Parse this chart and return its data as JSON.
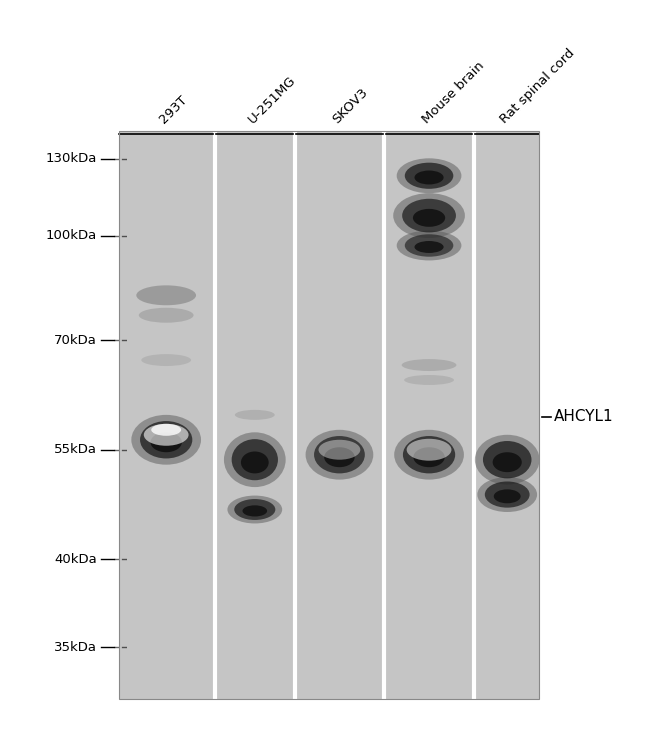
{
  "background_color": "#d8d8d8",
  "panel_color": "#c8c8c8",
  "white_bg": "#ffffff",
  "lane_labels": [
    "293T",
    "U-251MG",
    "SKOV3",
    "Mouse brain",
    "Rat spinal cord"
  ],
  "mw_markers": [
    "130kDa",
    "100kDa",
    "70kDa",
    "55kDa",
    "40kDa",
    "35kDa"
  ],
  "mw_positions": [
    130,
    100,
    70,
    55,
    40,
    35
  ],
  "annotation_label": "AHCYL1",
  "annotation_mw": 63,
  "fig_width": 6.5,
  "fig_height": 7.56,
  "dpi": 100
}
